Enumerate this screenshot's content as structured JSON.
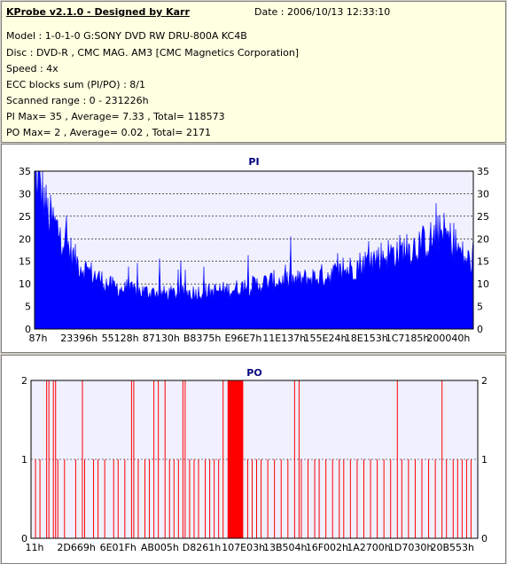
{
  "info": {
    "title": "KProbe v2.1.0 - Designed by Karr",
    "date": "Date : 2006/10/13 12:33:10",
    "model": "Model : 1-0-1-0 G:SONY    DVD RW DRU-800A  KC4B",
    "disc": "Disc : DVD-R , CMC MAG. AM3 [CMC Magnetics Corporation]",
    "speed": "Speed : 4x",
    "ecc": "ECC blocks sum (PI/PO) : 8/1",
    "range": "Scanned range : 0 - 231226h",
    "pi_stats": "PI Max= 35 , Average= 7.33 , Total= 118573",
    "po_stats": "PO Max= 2 , Average= 0.02 , Total= 2171"
  },
  "colors": {
    "pi": "#0000ff",
    "po": "#ff0000",
    "plot_bg": "#f0f0ff",
    "grid": "#000000"
  },
  "chart_data": [
    {
      "type": "area",
      "title": "PI",
      "ylim": [
        0,
        35
      ],
      "yticks": [
        0,
        5,
        10,
        15,
        20,
        25,
        30,
        35
      ],
      "xlabels": [
        "87h",
        "23396h",
        "55128h",
        "87130h",
        "B8375h",
        "E96E7h",
        "11E137h",
        "155E24h",
        "18E153h",
        "1C7185h",
        "200040h"
      ],
      "grid": "dashed",
      "profile": [
        [
          0,
          35
        ],
        [
          0.01,
          33
        ],
        [
          0.02,
          30
        ],
        [
          0.03,
          26
        ],
        [
          0.05,
          23
        ],
        [
          0.07,
          20
        ],
        [
          0.09,
          16
        ],
        [
          0.11,
          14
        ],
        [
          0.14,
          12
        ],
        [
          0.17,
          10
        ],
        [
          0.2,
          9
        ],
        [
          0.3,
          8
        ],
        [
          0.4,
          8.5
        ],
        [
          0.45,
          9
        ],
        [
          0.5,
          10
        ],
        [
          0.55,
          11
        ],
        [
          0.6,
          11
        ],
        [
          0.65,
          12
        ],
        [
          0.7,
          13
        ],
        [
          0.75,
          15
        ],
        [
          0.8,
          17
        ],
        [
          0.85,
          18
        ],
        [
          0.9,
          20
        ],
        [
          0.93,
          22
        ],
        [
          0.96,
          19
        ],
        [
          0.98,
          16
        ],
        [
          1,
          15
        ]
      ]
    },
    {
      "type": "bar",
      "title": "PO",
      "ylim": [
        0,
        2
      ],
      "yticks": [
        0,
        1,
        2
      ],
      "xlabels": [
        "11h",
        "2D669h",
        "6E01Fh",
        "AB005h",
        "D8261h",
        "107E03h",
        "13B504h",
        "16F002h",
        "1A2700h",
        "1D7030h",
        "20B553h"
      ],
      "grid": "dashed",
      "spikes_2": [
        0.035,
        0.04,
        0.05,
        0.055,
        0.115,
        0.225,
        0.23,
        0.275,
        0.285,
        0.3,
        0.34,
        0.345,
        0.43,
        0.59,
        0.6,
        0.82,
        0.92
      ],
      "solid_2_range": [
        0.44,
        0.475
      ],
      "spikes_1": [
        0.01,
        0.02,
        0.06,
        0.075,
        0.1,
        0.12,
        0.14,
        0.15,
        0.165,
        0.185,
        0.195,
        0.21,
        0.24,
        0.255,
        0.265,
        0.31,
        0.32,
        0.33,
        0.355,
        0.365,
        0.375,
        0.39,
        0.4,
        0.41,
        0.42,
        0.485,
        0.495,
        0.505,
        0.515,
        0.53,
        0.545,
        0.56,
        0.575,
        0.605,
        0.62,
        0.635,
        0.645,
        0.66,
        0.675,
        0.69,
        0.7,
        0.715,
        0.73,
        0.745,
        0.76,
        0.775,
        0.79,
        0.805,
        0.83,
        0.845,
        0.86,
        0.875,
        0.89,
        0.905,
        0.93,
        0.945,
        0.955,
        0.965,
        0.975,
        0.985
      ]
    }
  ]
}
